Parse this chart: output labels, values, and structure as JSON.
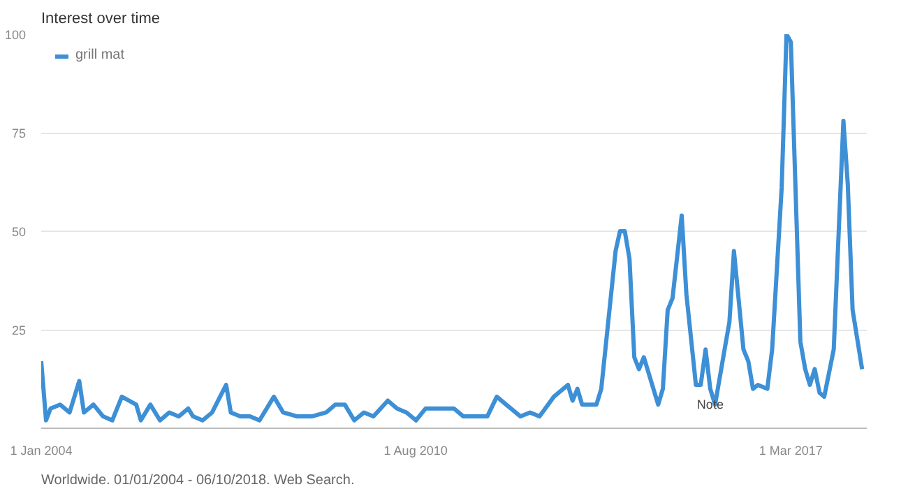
{
  "chart_data": {
    "type": "line",
    "title": "Interest over time",
    "x": [
      "2004-01",
      "2004-02",
      "2004-03",
      "2004-05",
      "2004-07",
      "2004-09",
      "2004-10",
      "2004-12",
      "2005-02",
      "2005-04",
      "2005-06",
      "2005-09",
      "2005-10",
      "2005-12",
      "2006-02",
      "2006-04",
      "2006-06",
      "2006-08",
      "2006-09",
      "2006-11",
      "2007-01",
      "2007-04",
      "2007-05",
      "2007-07",
      "2007-09",
      "2007-11",
      "2008-02",
      "2008-04",
      "2008-07",
      "2008-10",
      "2009-01",
      "2009-03",
      "2009-05",
      "2009-07",
      "2009-09",
      "2009-11",
      "2010-02",
      "2010-04",
      "2010-06",
      "2010-08",
      "2010-10",
      "2011-01",
      "2011-04",
      "2011-06",
      "2011-08",
      "2011-11",
      "2012-01",
      "2012-03",
      "2012-06",
      "2012-08",
      "2012-10",
      "2013-01",
      "2013-04",
      "2013-05",
      "2013-06",
      "2013-07",
      "2013-10",
      "2013-11",
      "2014-02",
      "2014-03",
      "2014-04",
      "2014-05",
      "2014-06",
      "2014-07",
      "2014-08",
      "2014-11",
      "2014-12",
      "2015-01",
      "2015-02",
      "2015-04",
      "2015-05",
      "2015-07",
      "2015-08",
      "2015-09",
      "2015-10",
      "2015-11",
      "2016-01",
      "2016-02",
      "2016-03",
      "2016-05",
      "2016-06",
      "2016-07",
      "2016-08",
      "2016-10",
      "2016-11",
      "2017-01",
      "2017-02",
      "2017-03",
      "2017-05",
      "2017-06",
      "2017-07",
      "2017-08",
      "2017-09",
      "2017-10",
      "2017-12",
      "2018-02",
      "2018-03",
      "2018-04",
      "2018-06"
    ],
    "series": [
      {
        "name": "grill mat",
        "color": "#3d8fd6",
        "values": [
          17,
          2,
          5,
          6,
          4,
          12,
          4,
          6,
          3,
          2,
          8,
          6,
          2,
          6,
          2,
          4,
          3,
          5,
          3,
          2,
          4,
          11,
          4,
          3,
          3,
          2,
          8,
          4,
          3,
          3,
          4,
          6,
          6,
          2,
          4,
          3,
          7,
          5,
          4,
          2,
          5,
          5,
          5,
          3,
          3,
          3,
          8,
          6,
          3,
          4,
          3,
          8,
          11,
          7,
          10,
          6,
          6,
          10,
          45,
          50,
          50,
          43,
          18,
          15,
          18,
          6,
          10,
          30,
          33,
          54,
          34,
          11,
          11,
          20,
          10,
          6,
          20,
          27,
          45,
          20,
          17,
          10,
          11,
          10,
          20,
          61,
          100,
          98,
          22,
          15,
          11,
          15,
          9,
          8,
          20,
          78,
          62,
          30,
          15
        ]
      }
    ],
    "xlim": [
      "2004-01-01",
      "2018-07-01"
    ],
    "xticks": [
      {
        "value": "2004-01-01",
        "label": "1 Jan 2004"
      },
      {
        "value": "2010-08-01",
        "label": "1 Aug 2010"
      },
      {
        "value": "2017-03-01",
        "label": "1 Mar 2017"
      }
    ],
    "ylim": [
      0,
      100
    ],
    "yticks": [
      {
        "value": 0,
        "label": null
      },
      25,
      50,
      75,
      100
    ],
    "grid": "y",
    "legend": "top left",
    "line_style": "solid",
    "marker": "none",
    "annotations": [
      {
        "text": "Note",
        "x": "2015-10",
        "y": 6
      },
      "Worldwide. 01/01/2004 - 06/10/2018. Web Search."
    ]
  }
}
